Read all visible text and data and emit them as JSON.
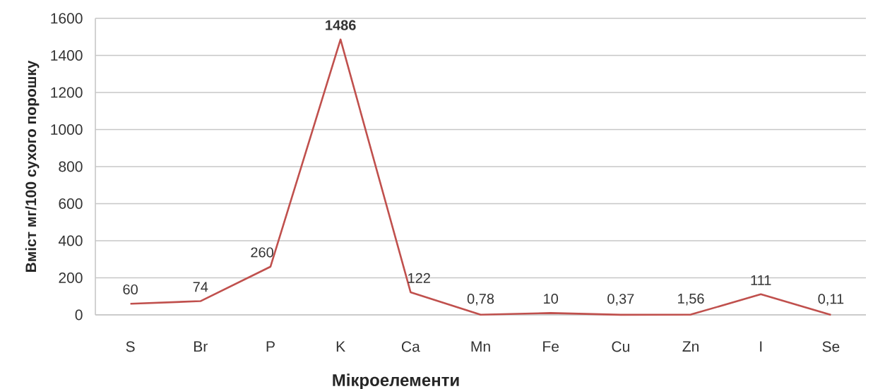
{
  "chart_data": {
    "type": "line",
    "xlabel": "Мікроелементи",
    "ylabel": "Вміст мг/100 сухого порошку",
    "categories": [
      "S",
      "Br",
      "P",
      "K",
      "Ca",
      "Mn",
      "Fe",
      "Cu",
      "Zn",
      "I",
      "Se"
    ],
    "series": [
      {
        "color": "#c0504d",
        "values": [
          60,
          74,
          260,
          1486,
          122,
          0.78,
          10,
          0.37,
          1.56,
          111,
          0.11
        ],
        "value_labels": [
          "60",
          "74",
          "260",
          "**1486**",
          "122",
          "0,78",
          "10",
          "0,37",
          "1,56",
          "111",
          "0,11"
        ]
      }
    ],
    "ylim": [
      0,
      1600
    ],
    "yticks": [
      0,
      200,
      400,
      600,
      800,
      1000,
      1200,
      1400,
      1600
    ],
    "grid": "y",
    "marker": "none",
    "line_style": "solid"
  }
}
